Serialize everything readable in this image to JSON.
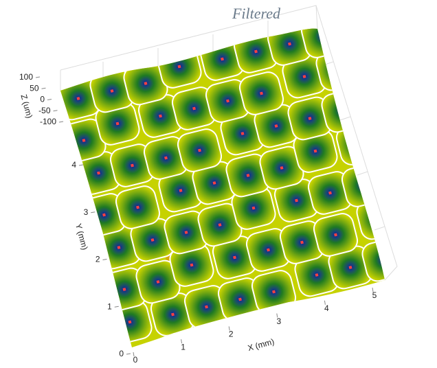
{
  "chart_data": {
    "type": "surface",
    "title": "Filtered",
    "xlabel": "X (mm)",
    "ylabel": "Y (mm)",
    "zlabel": "Z (um)",
    "xlim": [
      0,
      5
    ],
    "ylim": [
      0,
      4
    ],
    "zlim": [
      -100,
      100
    ],
    "xticks": [
      0,
      1,
      2,
      3,
      4,
      5
    ],
    "yticks": [
      0,
      1,
      2,
      3,
      4
    ],
    "zticks": [
      100,
      50,
      0,
      -50,
      -100
    ]
  }
}
